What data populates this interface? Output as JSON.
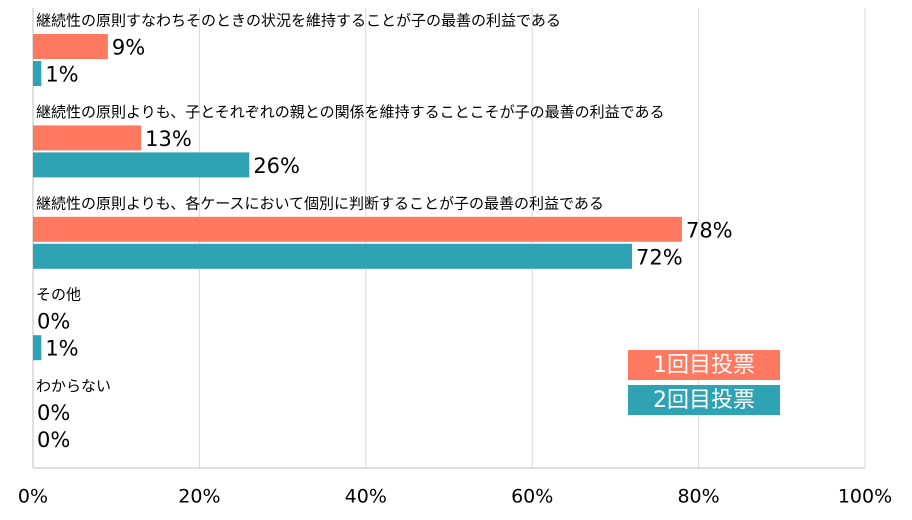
{
  "chart_data": {
    "type": "hbar",
    "categories": [
      "継続性の原則すなわちそのときの状況を維持することが子の最善の利益である",
      "継続性の原則よりも、子とそれぞれの親との関係を維持することこそが子の最善の利益である",
      "継続性の原則よりも、各ケースにおいて個別に判断することが子の最善の利益である",
      "その他",
      "わからない"
    ],
    "series": [
      {
        "name": "1回目投票",
        "color": "#ff7961",
        "values": [
          9,
          13,
          78,
          0,
          0
        ],
        "value_labels": [
          "9%",
          "13%",
          "78%",
          "0%",
          "0%"
        ]
      },
      {
        "name": "2回目投票",
        "color": "#2fa3b3",
        "values": [
          1,
          26,
          72,
          1,
          0
        ],
        "value_labels": [
          "1%",
          "26%",
          "72%",
          "1%",
          "0%"
        ]
      }
    ],
    "xlim": [
      0,
      100
    ],
    "xticks": [
      {
        "value": 0,
        "label": "0%"
      },
      {
        "value": 20,
        "label": "20%"
      },
      {
        "value": 40,
        "label": "40%"
      },
      {
        "value": 60,
        "label": "60%"
      },
      {
        "value": 80,
        "label": "80%"
      },
      {
        "value": 100,
        "label": "100%"
      }
    ],
    "grid": true,
    "legend": "lower right"
  }
}
